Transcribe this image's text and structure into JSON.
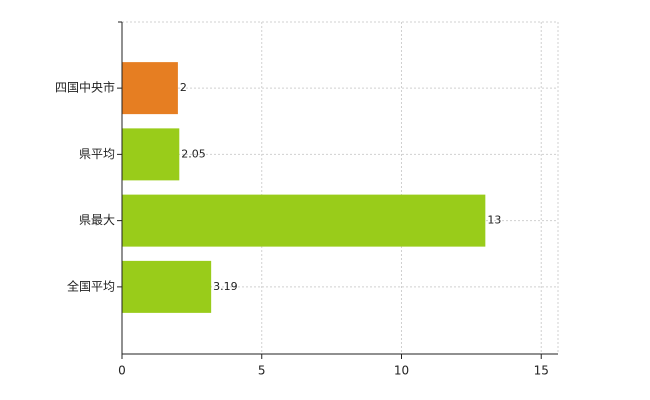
{
  "chart_data": {
    "type": "barh",
    "categories": [
      "四国中央市",
      "県平均",
      "県最大",
      "全国平均"
    ],
    "values": [
      2,
      2.05,
      13,
      3.19
    ],
    "colors": [
      "#e67e22",
      "#99cc1a",
      "#99cc1a",
      "#99cc1a"
    ],
    "xlim": [
      0,
      15.6
    ],
    "xticks": [
      0,
      5,
      10,
      15
    ],
    "grid": true
  }
}
